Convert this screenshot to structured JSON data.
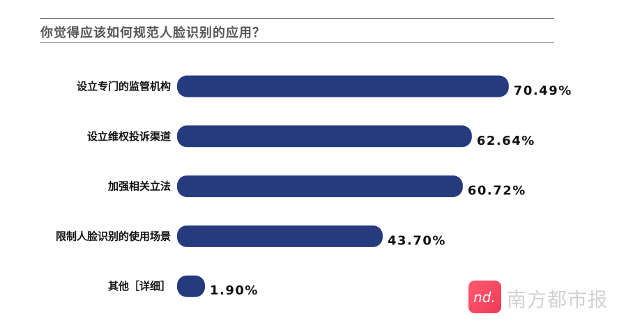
{
  "chart_data": {
    "type": "bar",
    "orientation": "horizontal",
    "title": "你觉得应该如何规范人脸识别的应用？",
    "categories": [
      "设立专门的监管机构",
      "设立维权投诉渠道",
      "加强相关立法",
      "限制人脸识别的使用场景",
      "其他［详细］"
    ],
    "values": [
      70.49,
      62.64,
      60.72,
      43.7,
      1.9
    ],
    "value_labels": [
      "70.49%",
      "62.64%",
      "60.72%",
      "43.70%",
      "1.90%"
    ],
    "unit": "%",
    "bar_color": "#263a7e",
    "grid": false,
    "legend": "none"
  },
  "watermark": {
    "text": "南方都市报",
    "logo_text": "nd."
  }
}
